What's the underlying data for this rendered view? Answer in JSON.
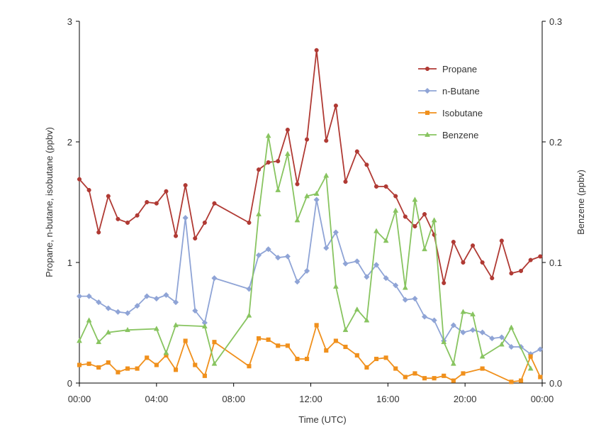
{
  "chart_data": {
    "type": "line",
    "title": "",
    "xlabel": "Time (UTC)",
    "ylabel_left": "Propane, n-butane, isobutane (ppbv)",
    "ylabel_right": "Benzene (ppbv)",
    "xlim": [
      0,
      24
    ],
    "ylim_left": [
      0,
      3
    ],
    "ylim_right": [
      0,
      0.3
    ],
    "x_ticks": [
      0,
      4,
      8,
      12,
      16,
      20,
      24
    ],
    "x_tick_labels": [
      "00:00",
      "04:00",
      "08:00",
      "12:00",
      "16:00",
      "20:00",
      "00:00"
    ],
    "y_left_ticks": [
      0,
      1,
      2,
      3
    ],
    "y_left_tick_labels": [
      "0",
      "1",
      "2",
      "3"
    ],
    "y_right_ticks": [
      0,
      0.1,
      0.2,
      0.3
    ],
    "y_right_tick_labels": [
      "0.0",
      "0.1",
      "0.2",
      "0.3"
    ],
    "grid": false,
    "legend_position": "top-right",
    "series": [
      {
        "name": "Propane",
        "axis": "left",
        "color": "#b03a34",
        "marker": "circle",
        "points": [
          [
            0,
            1.69
          ],
          [
            0.5,
            1.6
          ],
          [
            1,
            1.25
          ],
          [
            1.5,
            1.55
          ],
          [
            2,
            1.36
          ],
          [
            2.5,
            1.33
          ],
          [
            3,
            1.39
          ],
          [
            3.5,
            1.5
          ],
          [
            4,
            1.49
          ],
          [
            4.5,
            1.59
          ],
          [
            5,
            1.22
          ],
          [
            5.5,
            1.64
          ],
          [
            6,
            1.2
          ],
          [
            6.5,
            1.33
          ],
          [
            7,
            1.49
          ],
          [
            8.8,
            1.33
          ],
          [
            9.3,
            1.77
          ],
          [
            9.8,
            1.83
          ],
          [
            10.3,
            1.84
          ],
          [
            10.8,
            2.1
          ],
          [
            11.3,
            1.65
          ],
          [
            11.8,
            2.02
          ],
          [
            12.3,
            2.76
          ],
          [
            12.8,
            2.01
          ],
          [
            13.3,
            2.3
          ],
          [
            13.8,
            1.67
          ],
          [
            14.4,
            1.92
          ],
          [
            14.9,
            1.81
          ],
          [
            15.4,
            1.63
          ],
          [
            15.9,
            1.63
          ],
          [
            16.4,
            1.55
          ],
          [
            16.9,
            1.38
          ],
          [
            17.4,
            1.3
          ],
          [
            17.9,
            1.4
          ],
          [
            18.4,
            1.23
          ],
          [
            18.9,
            0.83
          ],
          [
            19.4,
            1.17
          ],
          [
            19.9,
            1.0
          ],
          [
            20.4,
            1.14
          ],
          [
            20.9,
            1.0
          ],
          [
            21.4,
            0.87
          ],
          [
            21.9,
            1.18
          ],
          [
            22.4,
            0.91
          ],
          [
            22.9,
            0.93
          ],
          [
            23.4,
            1.02
          ],
          [
            23.9,
            1.05
          ]
        ]
      },
      {
        "name": "n-Butane",
        "axis": "left",
        "color": "#8fa4d6",
        "marker": "diamond",
        "points": [
          [
            0,
            0.72
          ],
          [
            0.5,
            0.72
          ],
          [
            1,
            0.67
          ],
          [
            1.5,
            0.62
          ],
          [
            2,
            0.59
          ],
          [
            2.5,
            0.58
          ],
          [
            3,
            0.64
          ],
          [
            3.5,
            0.72
          ],
          [
            4,
            0.7
          ],
          [
            4.5,
            0.73
          ],
          [
            5,
            0.67
          ],
          [
            5.5,
            1.37
          ],
          [
            6,
            0.6
          ],
          [
            6.5,
            0.5
          ],
          [
            7,
            0.87
          ],
          [
            8.8,
            0.78
          ],
          [
            9.3,
            1.06
          ],
          [
            9.8,
            1.11
          ],
          [
            10.3,
            1.04
          ],
          [
            10.8,
            1.05
          ],
          [
            11.3,
            0.84
          ],
          [
            11.8,
            0.93
          ],
          [
            12.3,
            1.52
          ],
          [
            12.8,
            1.12
          ],
          [
            13.3,
            1.25
          ],
          [
            13.8,
            0.99
          ],
          [
            14.4,
            1.01
          ],
          [
            14.9,
            0.88
          ],
          [
            15.4,
            0.98
          ],
          [
            15.9,
            0.87
          ],
          [
            16.4,
            0.81
          ],
          [
            16.9,
            0.69
          ],
          [
            17.4,
            0.7
          ],
          [
            17.9,
            0.55
          ],
          [
            18.4,
            0.52
          ],
          [
            18.9,
            0.35
          ],
          [
            19.4,
            0.48
          ],
          [
            19.9,
            0.42
          ],
          [
            20.4,
            0.44
          ],
          [
            20.9,
            0.42
          ],
          [
            21.4,
            0.37
          ],
          [
            21.9,
            0.38
          ],
          [
            22.4,
            0.3
          ],
          [
            22.9,
            0.3
          ],
          [
            23.4,
            0.24
          ],
          [
            23.9,
            0.28
          ]
        ]
      },
      {
        "name": "Isobutane",
        "axis": "left",
        "color": "#f0901c",
        "marker": "square",
        "points": [
          [
            0,
            0.15
          ],
          [
            0.5,
            0.16
          ],
          [
            1,
            0.13
          ],
          [
            1.5,
            0.17
          ],
          [
            2,
            0.09
          ],
          [
            2.5,
            0.12
          ],
          [
            3,
            0.12
          ],
          [
            3.5,
            0.21
          ],
          [
            4,
            0.15
          ],
          [
            4.5,
            0.23
          ],
          [
            5,
            0.11
          ],
          [
            5.5,
            0.35
          ],
          [
            6,
            0.15
          ],
          [
            6.5,
            0.06
          ],
          [
            7,
            0.34
          ],
          [
            8.8,
            0.14
          ],
          [
            9.3,
            0.37
          ],
          [
            9.8,
            0.36
          ],
          [
            10.3,
            0.31
          ],
          [
            10.8,
            0.31
          ],
          [
            11.3,
            0.2
          ],
          [
            11.8,
            0.2
          ],
          [
            12.3,
            0.48
          ],
          [
            12.8,
            0.27
          ],
          [
            13.3,
            0.35
          ],
          [
            13.8,
            0.3
          ],
          [
            14.4,
            0.23
          ],
          [
            14.9,
            0.13
          ],
          [
            15.4,
            0.2
          ],
          [
            15.9,
            0.21
          ],
          [
            16.4,
            0.12
          ],
          [
            16.9,
            0.05
          ],
          [
            17.4,
            0.08
          ],
          [
            17.9,
            0.04
          ],
          [
            18.4,
            0.04
          ],
          [
            18.9,
            0.06
          ],
          [
            19.4,
            0.02
          ],
          [
            19.9,
            0.08
          ],
          [
            20.9,
            0.12
          ],
          [
            22.4,
            0.01
          ],
          [
            22.9,
            0.02
          ],
          [
            23.4,
            0.22
          ],
          [
            23.9,
            0.05
          ]
        ]
      },
      {
        "name": "Benzene",
        "axis": "right",
        "color": "#88c460",
        "marker": "triangle",
        "points": [
          [
            0,
            0.035
          ],
          [
            0.5,
            0.052
          ],
          [
            1,
            0.034
          ],
          [
            1.5,
            0.042
          ],
          [
            2.5,
            0.044
          ],
          [
            4,
            0.045
          ],
          [
            4.5,
            0.025
          ],
          [
            5,
            0.048
          ],
          [
            6.5,
            0.047
          ],
          [
            7,
            0.016
          ],
          [
            8.8,
            0.056
          ],
          [
            9.3,
            0.14
          ],
          [
            9.8,
            0.205
          ],
          [
            10.3,
            0.16
          ],
          [
            10.8,
            0.19
          ],
          [
            11.3,
            0.135
          ],
          [
            11.8,
            0.155
          ],
          [
            12.3,
            0.157
          ],
          [
            12.8,
            0.172
          ],
          [
            13.3,
            0.08
          ],
          [
            13.8,
            0.044
          ],
          [
            14.4,
            0.061
          ],
          [
            14.9,
            0.052
          ],
          [
            15.4,
            0.126
          ],
          [
            15.9,
            0.118
          ],
          [
            16.4,
            0.143
          ],
          [
            16.9,
            0.079
          ],
          [
            17.4,
            0.152
          ],
          [
            17.9,
            0.111
          ],
          [
            18.4,
            0.135
          ],
          [
            18.9,
            0.034
          ],
          [
            19.4,
            0.016
          ],
          [
            19.9,
            0.059
          ],
          [
            20.4,
            0.057
          ],
          [
            20.9,
            0.022
          ],
          [
            21.9,
            0.032
          ],
          [
            22.4,
            0.046
          ],
          [
            23.4,
            0.012
          ]
        ]
      }
    ]
  }
}
